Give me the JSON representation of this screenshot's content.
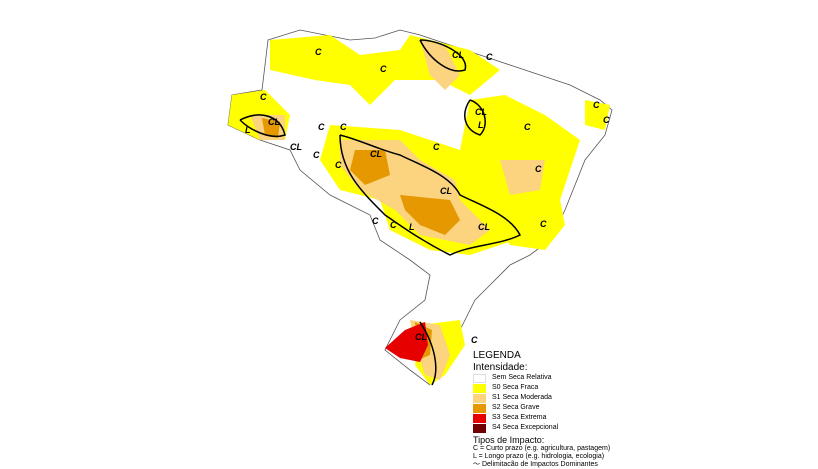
{
  "legend": {
    "title": "LEGENDA",
    "intensity_title": "Intensidade:",
    "categories": [
      {
        "label": "Sem Seca Relativa",
        "color": "#ffffff"
      },
      {
        "label": "S0 Seca Fraca",
        "color": "#ffff00"
      },
      {
        "label": "S1 Seca Moderada",
        "color": "#fcd37f"
      },
      {
        "label": "S2 Seca Grave",
        "color": "#e69800"
      },
      {
        "label": "S3 Seca Extrema",
        "color": "#e60000"
      },
      {
        "label": "S4 Seca Excepcional",
        "color": "#730000"
      }
    ],
    "impact_title": "Tipos de Impacto:",
    "impact_short": "C = Curto prazo (e.g. agricultura, pastagem)",
    "impact_long": "L = Longo prazo (e.g. hidrologia, ecologia)",
    "boundary": "Delimitacão de Impactos Dominantes"
  },
  "map_labels": [
    "C",
    "C",
    "C",
    "C",
    "C",
    "C",
    "C",
    "C",
    "C",
    "C",
    "C",
    "C",
    "C",
    "C",
    "C",
    "C",
    "C",
    "CL",
    "CL",
    "CL",
    "CL",
    "CL",
    "CL",
    "CL",
    "CL",
    "L",
    "L",
    "L"
  ]
}
